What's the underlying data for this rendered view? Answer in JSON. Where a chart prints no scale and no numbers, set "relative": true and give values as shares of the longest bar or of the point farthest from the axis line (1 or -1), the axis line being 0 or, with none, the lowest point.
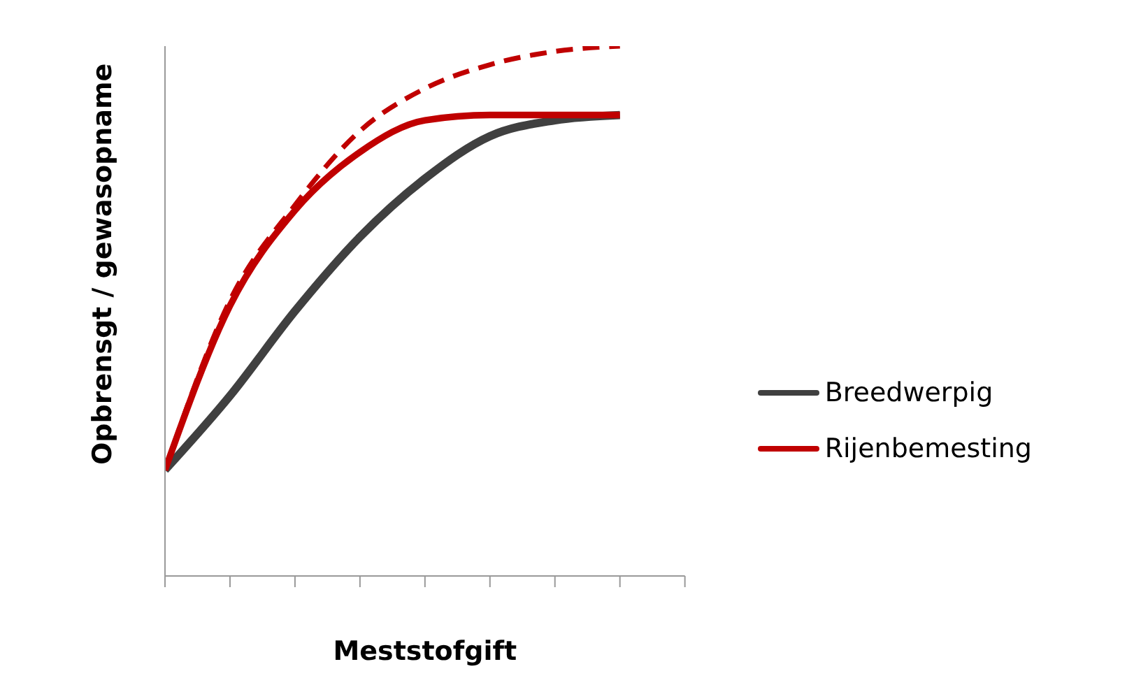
{
  "chart_data": {
    "type": "line",
    "relative": true,
    "xlabel": "Meststofgift",
    "ylabel": "Opbrensgt / gewasopname",
    "categories": [
      null,
      null,
      null,
      null,
      null,
      null,
      null,
      null,
      null
    ],
    "legend": "right",
    "line_style": "solid",
    "marker": "none",
    "series": [
      {
        "name": "Breedwerpig",
        "color": "#404040",
        "values": [
          0.2,
          0.34,
          0.5,
          0.64,
          0.75,
          0.83,
          0.86,
          0.87,
          null
        ]
      },
      {
        "name": "Rijenbemesting",
        "color": "#c00000",
        "values": [
          0.2,
          0.51,
          0.69,
          0.8,
          0.86,
          0.87,
          0.87,
          0.87,
          null
        ]
      },
      {
        "color": "#c00000",
        "line_style": "dashed",
        "values": [
          0.2,
          0.52,
          0.7,
          0.84,
          0.92,
          0.965,
          0.99,
          1,
          null
        ]
      }
    ]
  }
}
